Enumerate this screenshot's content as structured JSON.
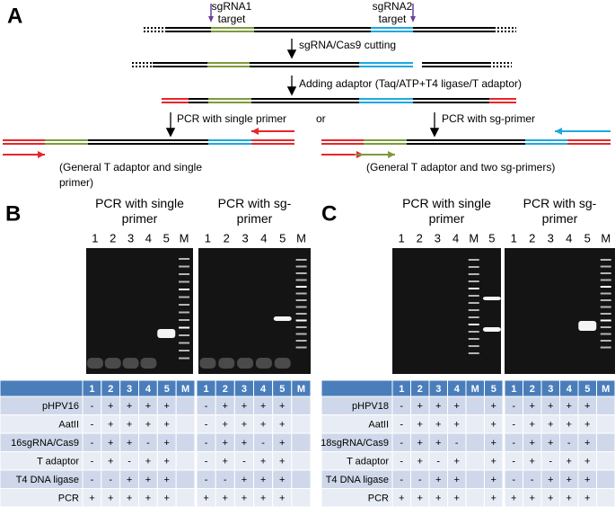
{
  "panel_a": {
    "label": "A",
    "sgrna1_target": "sgRNA1 target",
    "sgrna2_target": "sgRNA2 target",
    "step_cutting": "sgRNA/Cas9 cutting",
    "step_adaptor": "Adding adaptor  (Taq/ATP+T4 ligase/T adaptor)",
    "pcr_single": "PCR with single primer",
    "or": "or",
    "pcr_sg": "PCR with sg-primer",
    "note_single": "(General T adaptor and single primer)",
    "note_sg": "(General T adaptor and two sg-primers)"
  },
  "panel_b": {
    "label": "B",
    "gels": [
      {
        "title": "PCR with single primer",
        "lanes": [
          "1",
          "2",
          "3",
          "4",
          "5",
          "M"
        ]
      },
      {
        "title": "PCR with sg-primer",
        "lanes": [
          "1",
          "2",
          "3",
          "4",
          "5",
          "M"
        ]
      }
    ],
    "table": {
      "header": [
        null,
        "1",
        "2",
        "3",
        "4",
        "5",
        "M",
        "1",
        "2",
        "3",
        "4",
        "5",
        "M"
      ],
      "rows": [
        [
          "pHPV16",
          "-",
          "+",
          "+",
          "+",
          "+",
          null,
          "-",
          "+",
          "+",
          "+",
          "+",
          null
        ],
        [
          "AatII",
          "-",
          "+",
          "+",
          "+",
          "+",
          null,
          "-",
          "+",
          "+",
          "+",
          "+",
          null
        ],
        [
          "16sgRNA/Cas9",
          "-",
          "+",
          "+",
          "-",
          "+",
          null,
          "-",
          "+",
          "+",
          "-",
          "+",
          null
        ],
        [
          "T adaptor",
          "-",
          "+",
          "-",
          "+",
          "+",
          null,
          "-",
          "+",
          "-",
          "+",
          "+",
          null
        ],
        [
          "T4 DNA ligase",
          "-",
          "-",
          "+",
          "+",
          "+",
          null,
          "-",
          "-",
          "+",
          "+",
          "+",
          null
        ],
        [
          "PCR",
          "+",
          "+",
          "+",
          "+",
          "+",
          null,
          "+",
          "+",
          "+",
          "+",
          "+",
          null
        ]
      ]
    }
  },
  "panel_c": {
    "label": "C",
    "gels": [
      {
        "title": "PCR with single primer",
        "lanes": [
          "1",
          "2",
          "3",
          "4",
          "M",
          "5"
        ]
      },
      {
        "title": "PCR with sg-primer",
        "lanes": [
          "1",
          "2",
          "3",
          "4",
          "5",
          "M"
        ]
      }
    ],
    "table": {
      "header": [
        null,
        "1",
        "2",
        "3",
        "4",
        "M",
        "5",
        "1",
        "2",
        "3",
        "4",
        "5",
        "M"
      ],
      "rows": [
        [
          "pHPV18",
          "-",
          "+",
          "+",
          "+",
          null,
          "+",
          "-",
          "+",
          "+",
          "+",
          "+",
          null
        ],
        [
          "AatII",
          "-",
          "+",
          "+",
          "+",
          null,
          "+",
          "-",
          "+",
          "+",
          "+",
          "+",
          null
        ],
        [
          "18sgRNA/Cas9",
          "-",
          "+",
          "+",
          "-",
          null,
          "+",
          "-",
          "+",
          "+",
          "-",
          "+",
          null
        ],
        [
          "T adaptor",
          "-",
          "+",
          "-",
          "+",
          null,
          "+",
          "-",
          "+",
          "-",
          "+",
          "+",
          null
        ],
        [
          "T4 DNA ligase",
          "-",
          "-",
          "+",
          "+",
          null,
          "+",
          "-",
          "-",
          "+",
          "+",
          "+",
          null
        ],
        [
          "PCR",
          "+",
          "+",
          "+",
          "+",
          null,
          "+",
          "+",
          "+",
          "+",
          "+",
          "+",
          null
        ]
      ]
    }
  }
}
